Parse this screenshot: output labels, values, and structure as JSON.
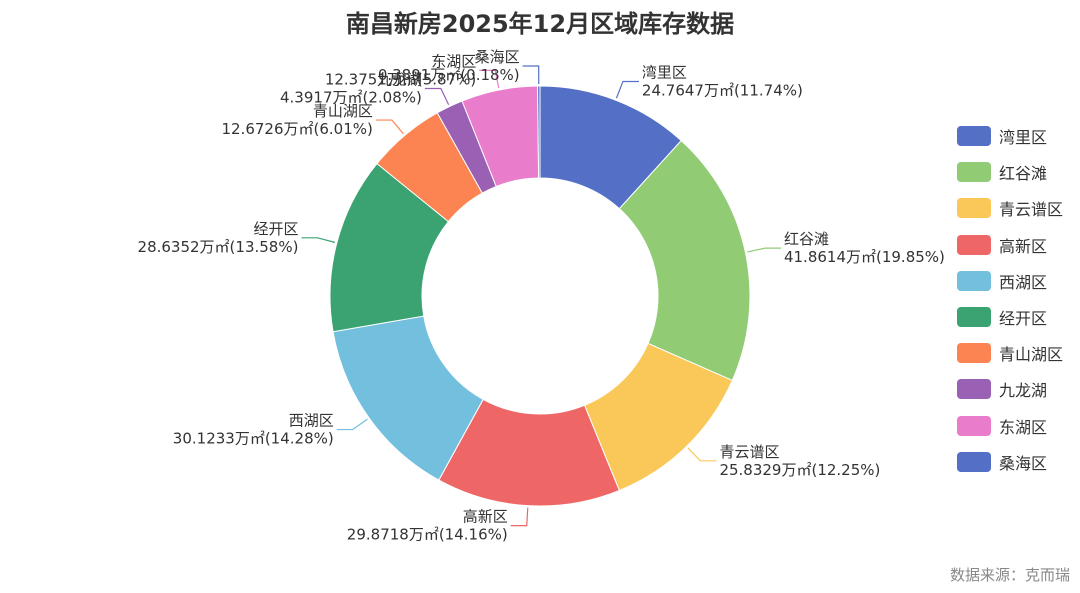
{
  "chart_data": {
    "type": "pie",
    "variant": "donut",
    "title": "南昌新房2025年12月区域库存数据",
    "source": "数据来源：克而瑞",
    "legend_position": "right",
    "categories": [
      "湾里区",
      "红谷滩",
      "青云谱区",
      "高新区",
      "西湖区",
      "经开区",
      "青山湖区",
      "九龙湖",
      "东湖区",
      "桑海区"
    ],
    "values": [
      24.7647,
      41.8614,
      25.8329,
      29.8718,
      30.1233,
      28.6352,
      12.6726,
      4.3917,
      12.3751,
      0.3891
    ],
    "value_labels": [
      "24.7647万㎡(11.74%)",
      "41.8614万㎡(19.85%)",
      "25.8329万㎡(12.25%)",
      "29.8718万㎡(14.16%)",
      "30.1233万㎡(14.28%)",
      "28.6352万㎡(13.58%)",
      "12.6726万㎡(6.01%)",
      "4.3917万㎡(2.08%)",
      "12.3751万㎡(5.87%)",
      "0.3891万㎡(0.18%)"
    ],
    "colors": [
      "#5470c6",
      "#91cc75",
      "#fac858",
      "#ee6666",
      "#73c0de",
      "#3ba272",
      "#fc8452",
      "#9a60b4",
      "#ea7ccc",
      "#5470c6"
    ]
  }
}
